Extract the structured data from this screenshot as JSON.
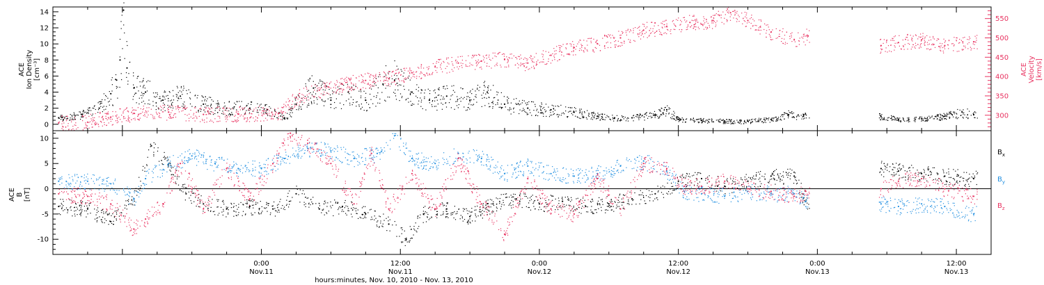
{
  "colors": {
    "black": "#000000",
    "pink": "#e8315f",
    "blue": "#1f8ee0"
  },
  "xaxis": {
    "title": "hours:minutes, Nov. 10, 2010 - Nov. 13, 2010",
    "range_hours": [
      -18,
      63
    ],
    "ticks": [
      {
        "t": 0,
        "time": "0:00",
        "date": "Nov.11"
      },
      {
        "t": 12,
        "time": "12:00",
        "date": "Nov.11"
      },
      {
        "t": 24,
        "time": "0:00",
        "date": "Nov.12"
      },
      {
        "t": 36,
        "time": "12:00",
        "date": "Nov.12"
      },
      {
        "t": 48,
        "time": "0:00",
        "date": "Nov.13"
      },
      {
        "t": 60,
        "time": "12:00",
        "date": "Nov.13"
      }
    ]
  },
  "chart_data": [
    {
      "type": "scatter",
      "panel": "top",
      "ylabel_left": [
        "ACE",
        "Ion Density",
        "[cm⁻³]"
      ],
      "ylabel_right": [
        "ACE",
        "Velocity",
        "[km/s]"
      ],
      "ylim": [
        -0.8,
        14.6
      ],
      "yticks": [
        0,
        2,
        4,
        6,
        8,
        10,
        12,
        14
      ],
      "ylim_right": [
        260,
        580
      ],
      "yticks_right": [
        300,
        350,
        400,
        450,
        500,
        550
      ],
      "series": [
        {
          "key": "density",
          "axis": "left",
          "color": "#000000",
          "points": [
            [
              -17.5,
              0.8
            ],
            [
              -15.5,
              1.2
            ],
            [
              -14,
              2
            ],
            [
              -13,
              3.8
            ],
            [
              -12.5,
              5.5
            ],
            [
              -12.2,
              8
            ],
            [
              -11.9,
              14.2
            ],
            [
              -11.6,
              7
            ],
            [
              -11,
              4.5
            ],
            [
              -10,
              4
            ],
            [
              -8.5,
              3
            ],
            [
              -7,
              3.5
            ],
            [
              -5,
              2.5
            ],
            [
              -3,
              2
            ],
            [
              -1,
              2
            ],
            [
              0.5,
              1.8
            ],
            [
              2,
              0.8
            ],
            [
              3,
              2.5
            ],
            [
              4.5,
              4.5
            ],
            [
              6,
              3
            ],
            [
              7.5,
              4
            ],
            [
              9,
              3
            ],
            [
              10.5,
              5
            ],
            [
              11.5,
              5.5
            ],
            [
              13,
              4
            ],
            [
              14.5,
              3
            ],
            [
              16,
              3.5
            ],
            [
              18,
              3
            ],
            [
              19.5,
              4
            ],
            [
              21,
              2.5
            ],
            [
              23,
              2
            ],
            [
              25,
              1.8
            ],
            [
              27,
              1.5
            ],
            [
              29,
              1
            ],
            [
              30.5,
              0.8
            ],
            [
              32,
              0.8
            ],
            [
              34,
              1.2
            ],
            [
              35,
              1.8
            ],
            [
              36,
              0.6
            ],
            [
              38,
              0.5
            ],
            [
              40,
              0.4
            ],
            [
              42,
              0.4
            ],
            [
              44,
              0.6
            ],
            [
              45.5,
              1.2
            ],
            [
              46.8,
              1
            ],
            [
              53.5,
              1
            ],
            [
              55,
              0.6
            ],
            [
              57,
              0.7
            ],
            [
              59,
              1
            ],
            [
              60.5,
              1.5
            ],
            [
              61.5,
              1.2
            ]
          ]
        },
        {
          "key": "velocity",
          "axis": "right",
          "color": "#e8315f",
          "points": [
            [
              -17.5,
              280
            ],
            [
              -15,
              282
            ],
            [
              -13,
              295
            ],
            [
              -11,
              305
            ],
            [
              -8,
              308
            ],
            [
              -5,
              302
            ],
            [
              -2,
              303
            ],
            [
              1.5,
              305
            ],
            [
              3,
              345
            ],
            [
              5,
              365
            ],
            [
              7,
              380
            ],
            [
              9,
              390
            ],
            [
              11,
              395
            ],
            [
              13,
              410
            ],
            [
              15,
              425
            ],
            [
              17,
              435
            ],
            [
              19,
              440
            ],
            [
              21,
              445
            ],
            [
              23,
              435
            ],
            [
              25,
              455
            ],
            [
              27,
              475
            ],
            [
              29,
              485
            ],
            [
              31,
              500
            ],
            [
              33,
              520
            ],
            [
              35,
              530
            ],
            [
              37,
              540
            ],
            [
              39,
              545
            ],
            [
              40.5,
              565
            ],
            [
              42,
              545
            ],
            [
              44,
              515
            ],
            [
              46,
              495
            ],
            [
              47.2,
              505
            ],
            [
              53.5,
              480
            ],
            [
              55,
              488
            ],
            [
              57,
              495
            ],
            [
              59,
              480
            ],
            [
              61.5,
              490
            ]
          ]
        }
      ]
    },
    {
      "type": "scatter",
      "panel": "bottom",
      "ylabel_left": [
        "ACE",
        "B",
        "[nT]"
      ],
      "ylim": [
        -13,
        11.5
      ],
      "yticks": [
        -10,
        -5,
        0,
        5,
        10
      ],
      "zero_line": true,
      "legend": [
        "Bx",
        "By",
        "Bz"
      ],
      "legend_placement": "right",
      "series": [
        {
          "name": "Bx",
          "key": "bx",
          "color": "#000000",
          "points": [
            [
              -17.5,
              -3.5
            ],
            [
              -15,
              -4
            ],
            [
              -13,
              -6.5
            ],
            [
              -11,
              -2
            ],
            [
              -9.5,
              8.5
            ],
            [
              -8,
              5
            ],
            [
              -6.5,
              -1
            ],
            [
              -5,
              -3
            ],
            [
              -3,
              -4
            ],
            [
              -1,
              -3.5
            ],
            [
              1,
              -4
            ],
            [
              3,
              -1
            ],
            [
              5,
              -4
            ],
            [
              7,
              -3.5
            ],
            [
              9,
              -5
            ],
            [
              11,
              -7
            ],
            [
              12.5,
              -10
            ],
            [
              14,
              -5
            ],
            [
              16,
              -4
            ],
            [
              18,
              -5.5
            ],
            [
              20,
              -3
            ],
            [
              22,
              -2
            ],
            [
              24,
              -3
            ],
            [
              26,
              -2.5
            ],
            [
              28,
              -3.5
            ],
            [
              30,
              -3
            ],
            [
              32,
              -2
            ],
            [
              34,
              -1
            ],
            [
              36,
              1.5
            ],
            [
              38,
              2
            ],
            [
              40,
              0.5
            ],
            [
              42,
              1.5
            ],
            [
              44,
              2.5
            ],
            [
              46,
              2.5
            ],
            [
              47,
              -2.5
            ],
            [
              53.5,
              4
            ],
            [
              55,
              3.5
            ],
            [
              57,
              3
            ],
            [
              59,
              2.5
            ],
            [
              61.5,
              2
            ]
          ]
        },
        {
          "name": "By",
          "key": "by",
          "color": "#1f8ee0",
          "points": [
            [
              -17.5,
              1.5
            ],
            [
              -15,
              1.5
            ],
            [
              -13,
              1
            ],
            [
              -11,
              -2
            ],
            [
              -10,
              2
            ],
            [
              -8,
              5
            ],
            [
              -6,
              6.5
            ],
            [
              -4,
              5
            ],
            [
              -2,
              4
            ],
            [
              0,
              4
            ],
            [
              2,
              6
            ],
            [
              4,
              8
            ],
            [
              6,
              7.5
            ],
            [
              8,
              6
            ],
            [
              10,
              7
            ],
            [
              11.5,
              10.5
            ],
            [
              13,
              6
            ],
            [
              15,
              5
            ],
            [
              17,
              7
            ],
            [
              19,
              6
            ],
            [
              21,
              3
            ],
            [
              23,
              4.5
            ],
            [
              25,
              3
            ],
            [
              27,
              2.5
            ],
            [
              29,
              3
            ],
            [
              31,
              4.5
            ],
            [
              33,
              5.5
            ],
            [
              35,
              3.5
            ],
            [
              36.5,
              -0.5
            ],
            [
              38,
              -1
            ],
            [
              40,
              -1.5
            ],
            [
              42,
              -0.5
            ],
            [
              44,
              -1
            ],
            [
              46,
              -1
            ],
            [
              47,
              -2.5
            ],
            [
              53.5,
              -3
            ],
            [
              55,
              -3.5
            ],
            [
              57,
              -3
            ],
            [
              59,
              -3.5
            ],
            [
              61.5,
              -5
            ]
          ]
        },
        {
          "name": "Bz",
          "key": "bz",
          "color": "#e8315f",
          "points": [
            [
              -17.5,
              -1
            ],
            [
              -15,
              -1.5
            ],
            [
              -13,
              -3
            ],
            [
              -11,
              -8
            ],
            [
              -10,
              -6
            ],
            [
              -8.5,
              -3
            ],
            [
              -7,
              5
            ],
            [
              -5,
              -4
            ],
            [
              -3,
              4
            ],
            [
              -1,
              -2
            ],
            [
              1,
              5
            ],
            [
              2.5,
              11
            ],
            [
              4,
              9
            ],
            [
              6,
              5
            ],
            [
              8,
              -3
            ],
            [
              9.5,
              7
            ],
            [
              11,
              -4
            ],
            [
              13,
              3
            ],
            [
              15,
              -4
            ],
            [
              17,
              6
            ],
            [
              19,
              -3
            ],
            [
              21,
              -9
            ],
            [
              23,
              2
            ],
            [
              25,
              -4
            ],
            [
              27,
              -5
            ],
            [
              29,
              2
            ],
            [
              31,
              -4
            ],
            [
              33,
              5
            ],
            [
              35,
              4
            ],
            [
              36.5,
              0.5
            ],
            [
              38,
              0.5
            ],
            [
              40,
              1.5
            ],
            [
              42,
              0
            ],
            [
              44,
              -0.5
            ],
            [
              46,
              -1.5
            ],
            [
              47,
              -0.5
            ],
            [
              53.5,
              0
            ],
            [
              55,
              1.5
            ],
            [
              57,
              2
            ],
            [
              59,
              0
            ],
            [
              61.5,
              -1.5
            ]
          ]
        }
      ]
    }
  ]
}
